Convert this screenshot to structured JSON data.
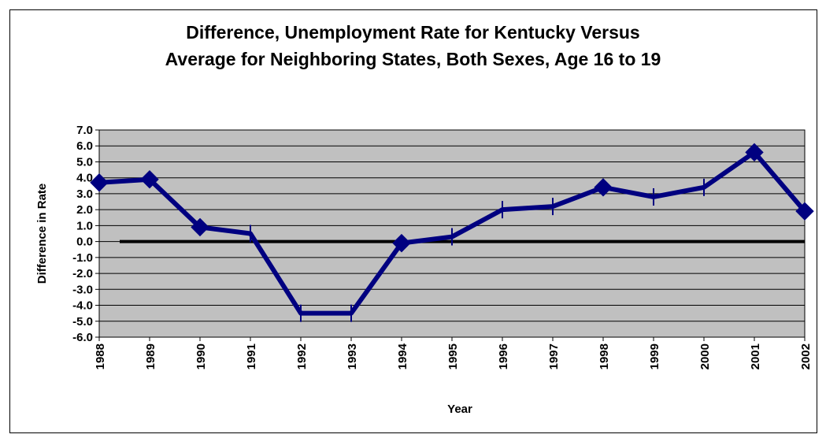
{
  "chart_data": {
    "type": "line",
    "title_line1": "Difference, Unemployment Rate for Kentucky Versus",
    "title_line2": "Average for Neighboring States, Both Sexes, Age 16 to 19",
    "xlabel": "Year",
    "ylabel": "Difference in Rate",
    "ylim": [
      -6.0,
      7.0
    ],
    "yticks": [
      "7.0",
      "6.0",
      "5.0",
      "4.0",
      "3.0",
      "2.0",
      "1.0",
      "0.0",
      "-1.0",
      "-2.0",
      "-3.0",
      "-4.0",
      "-5.0",
      "-6.0"
    ],
    "grid": true,
    "categories": [
      "1988",
      "1989",
      "1990",
      "1991",
      "1992",
      "1993",
      "1994",
      "1995",
      "1996",
      "1997",
      "1998",
      "1999",
      "2000",
      "2001",
      "2002"
    ],
    "series": [
      {
        "values": [
          3.7,
          3.9,
          0.9,
          0.5,
          -4.5,
          -4.5,
          -0.1,
          0.3,
          2.0,
          2.2,
          3.4,
          2.8,
          3.4,
          5.6,
          1.9
        ],
        "color": "#000080",
        "marker": [
          true,
          true,
          true,
          false,
          false,
          false,
          true,
          false,
          false,
          false,
          true,
          false,
          false,
          true,
          true
        ]
      }
    ],
    "colors": {
      "plot_background": "#C0C0C0",
      "zero_line": "#000000",
      "series_line": "#000080"
    }
  }
}
